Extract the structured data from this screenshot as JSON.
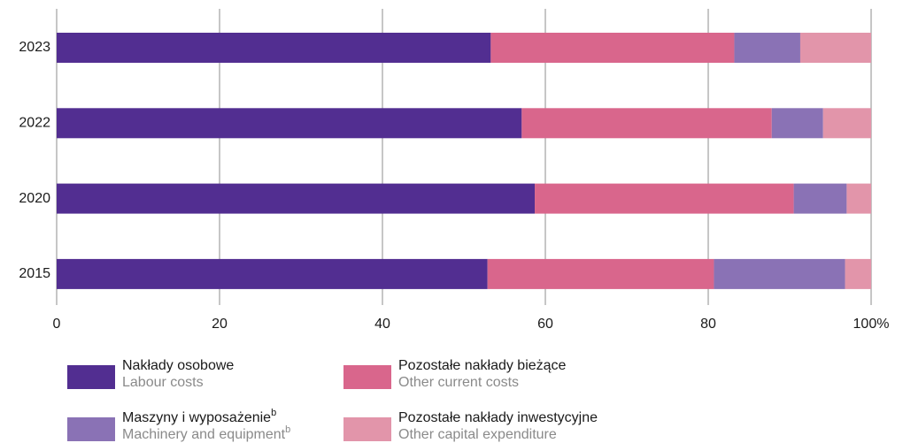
{
  "chart_data": {
    "type": "stacked-barh",
    "categories": [
      "2023",
      "2022",
      "2020",
      "2015"
    ],
    "series": [
      {
        "name": "Nakłady osobowe",
        "name_en": "Labour costs",
        "color": "#522e91",
        "values": [
          53.3,
          57.1,
          58.7,
          52.9
        ]
      },
      {
        "name": "Pozostałe nakłady bieżące",
        "name_en": "Other current costs",
        "color": "#d9668c",
        "values": [
          29.9,
          30.7,
          31.8,
          27.8
        ]
      },
      {
        "name": "Maszyny i wyposażenie",
        "footnote": "b",
        "name_en": "Machinery and equipment",
        "footnote_en": "b",
        "color": "#8a72b5",
        "values": [
          8.1,
          6.3,
          6.5,
          16.1
        ]
      },
      {
        "name": "Pozostałe nakłady inwestycyjne",
        "name_en": "Other capital expenditure",
        "color": "#e295aa",
        "values": [
          8.7,
          5.9,
          3.0,
          3.2
        ]
      }
    ],
    "xlim": [
      0,
      100
    ],
    "xticks": [
      0,
      20,
      40,
      60,
      80,
      {
        "value": 100,
        "label": "100%"
      }
    ],
    "grid": true
  }
}
